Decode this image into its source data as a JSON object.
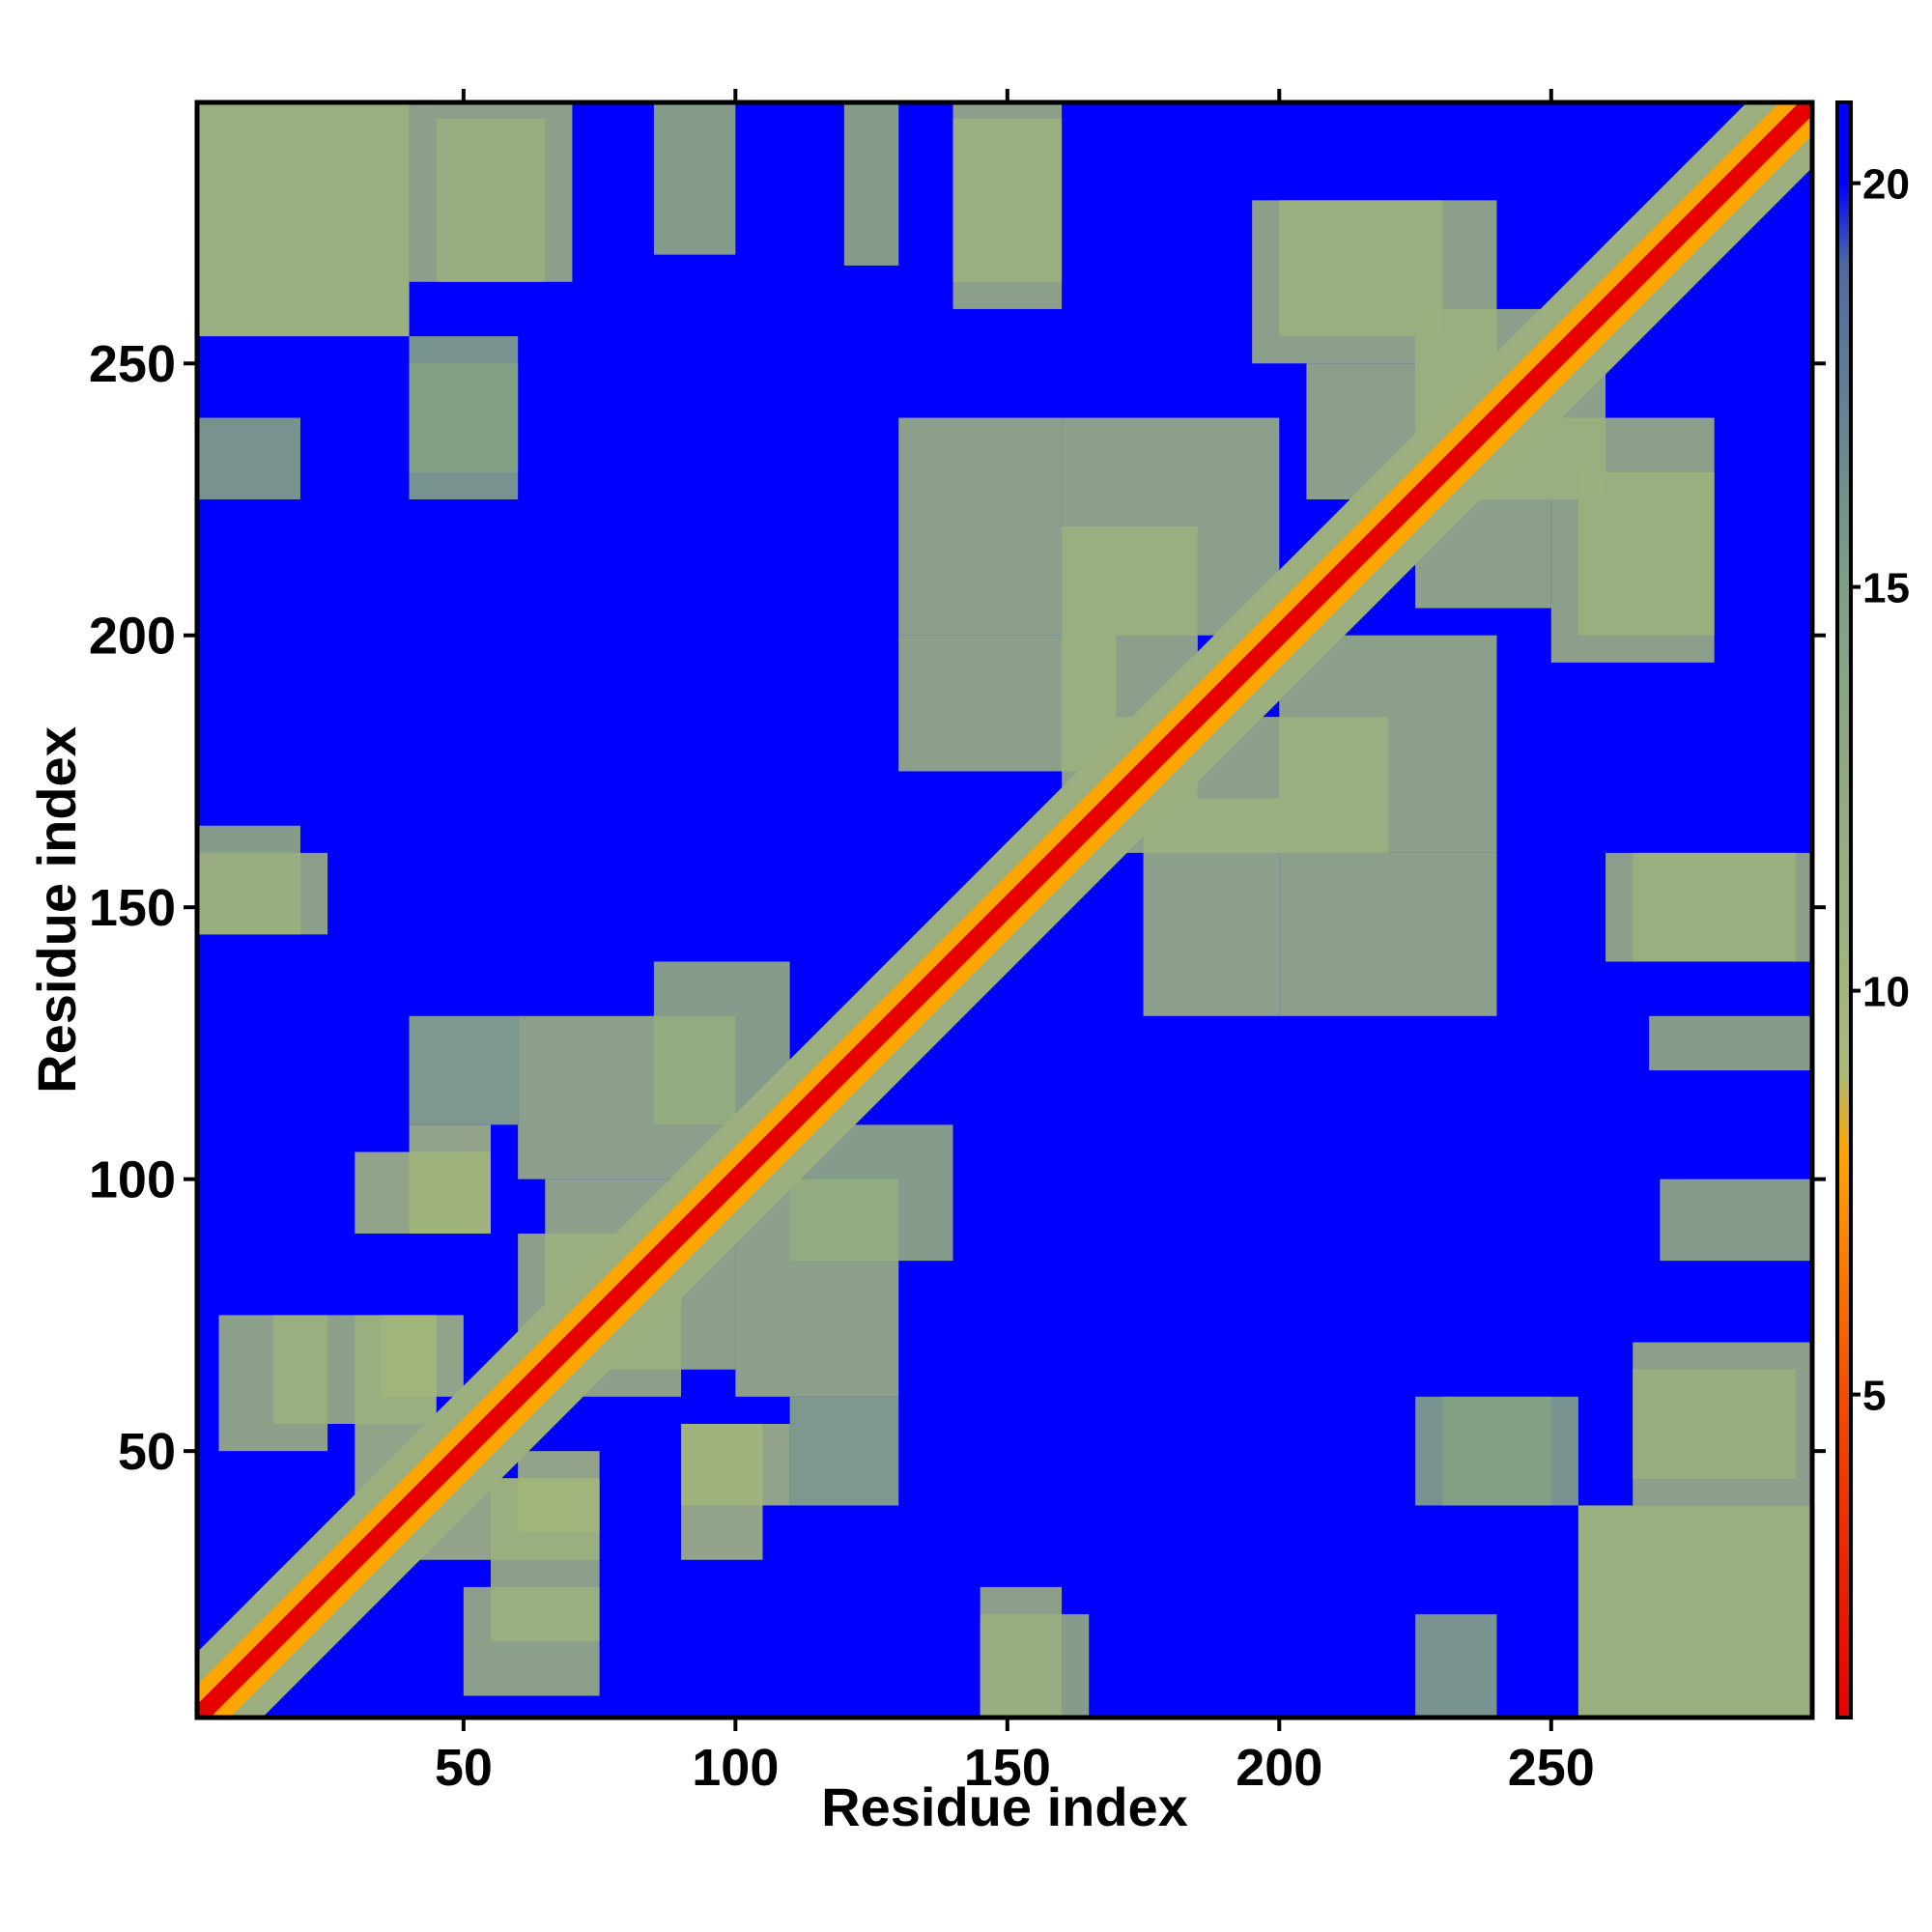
{
  "chart_data": {
    "type": "heatmap",
    "title": "",
    "xlabel": "Residue index",
    "ylabel": "Residue index",
    "xlim": [
      1,
      298
    ],
    "ylim": [
      1,
      298
    ],
    "x_ticks": [
      50,
      100,
      150,
      200,
      250
    ],
    "y_ticks": [
      50,
      100,
      150,
      200,
      250
    ],
    "colorbar": {
      "ticks": [
        5,
        10,
        15,
        20
      ],
      "range": [
        1,
        21
      ],
      "stops": [
        {
          "value": 1,
          "color": "#e60000"
        },
        {
          "value": 5,
          "color": "#f24d00"
        },
        {
          "value": 8,
          "color": "#ffa500"
        },
        {
          "value": 9,
          "color": "#a9b97a"
        },
        {
          "value": 15,
          "color": "#7f9f86"
        },
        {
          "value": 19,
          "color": "#4e6aa0"
        },
        {
          "value": 20,
          "color": "#0000ff"
        }
      ]
    },
    "background_value": 20,
    "symmetric": true,
    "diagonal_band_width": 4,
    "contact_regions": [
      {
        "x": [
          1,
          40
        ],
        "y": [
          255,
          298
        ],
        "value": 11
      },
      {
        "x": [
          45,
          65
        ],
        "y": [
          265,
          295
        ],
        "value": 12
      },
      {
        "x": [
          85,
          100
        ],
        "y": [
          270,
          298
        ],
        "value": 12
      },
      {
        "x": [
          120,
          130
        ],
        "y": [
          268,
          298
        ],
        "value": 12
      },
      {
        "x": [
          140,
          160
        ],
        "y": [
          265,
          295
        ],
        "value": 11
      },
      {
        "x": [
          40,
          60
        ],
        "y": [
          230,
          255
        ],
        "value": 14
      },
      {
        "x": [
          1,
          20
        ],
        "y": [
          225,
          240
        ],
        "value": 14
      },
      {
        "x": [
          1,
          20
        ],
        "y": [
          145,
          165
        ],
        "value": 12
      },
      {
        "x": [
          30,
          45
        ],
        "y": [
          35,
          75
        ],
        "value": 10
      },
      {
        "x": [
          40,
          55
        ],
        "y": [
          90,
          110
        ],
        "value": 10
      },
      {
        "x": [
          55,
          75
        ],
        "y": [
          15,
          45
        ],
        "value": 11
      },
      {
        "x": [
          60,
          75
        ],
        "y": [
          35,
          50
        ],
        "value": 10
      },
      {
        "x": [
          90,
          105
        ],
        "y": [
          30,
          55
        ],
        "value": 10
      },
      {
        "x": [
          65,
          90
        ],
        "y": [
          60,
          100
        ],
        "value": 11
      },
      {
        "x": [
          100,
          130
        ],
        "y": [
          60,
          100
        ],
        "value": 11
      },
      {
        "x": [
          40,
          60
        ],
        "y": [
          110,
          130
        ],
        "value": 13
      },
      {
        "x": [
          85,
          110
        ],
        "y": [
          110,
          140
        ],
        "value": 12
      },
      {
        "x": [
          130,
          160
        ],
        "y": [
          200,
          240
        ],
        "value": 11
      },
      {
        "x": [
          160,
          185
        ],
        "y": [
          170,
          220
        ],
        "value": 11
      },
      {
        "x": [
          175,
          200
        ],
        "y": [
          130,
          170
        ],
        "value": 11
      },
      {
        "x": [
          200,
          240
        ],
        "y": [
          160,
          200
        ],
        "value": 11
      },
      {
        "x": [
          195,
          240
        ],
        "y": [
          250,
          280
        ],
        "value": 11
      },
      {
        "x": [
          225,
          250
        ],
        "y": [
          205,
          240
        ],
        "value": 11
      },
      {
        "x": [
          240,
          260
        ],
        "y": [
          225,
          250
        ],
        "value": 11
      },
      {
        "x": [
          255,
          280
        ],
        "y": [
          200,
          230
        ],
        "value": 11
      },
      {
        "x": [
          260,
          298
        ],
        "y": [
          140,
          160
        ],
        "value": 11
      },
      {
        "x": [
          265,
          298
        ],
        "y": [
          40,
          70
        ],
        "value": 11
      },
      {
        "x": [
          255,
          298
        ],
        "y": [
          1,
          40
        ],
        "value": 11
      },
      {
        "x": [
          225,
          250
        ],
        "y": [
          40,
          60
        ],
        "value": 14
      },
      {
        "x": [
          145,
          160
        ],
        "y": [
          1,
          25
        ],
        "value": 11
      },
      {
        "x": [
          5,
          25
        ],
        "y": [
          50,
          75
        ],
        "value": 11
      }
    ]
  }
}
